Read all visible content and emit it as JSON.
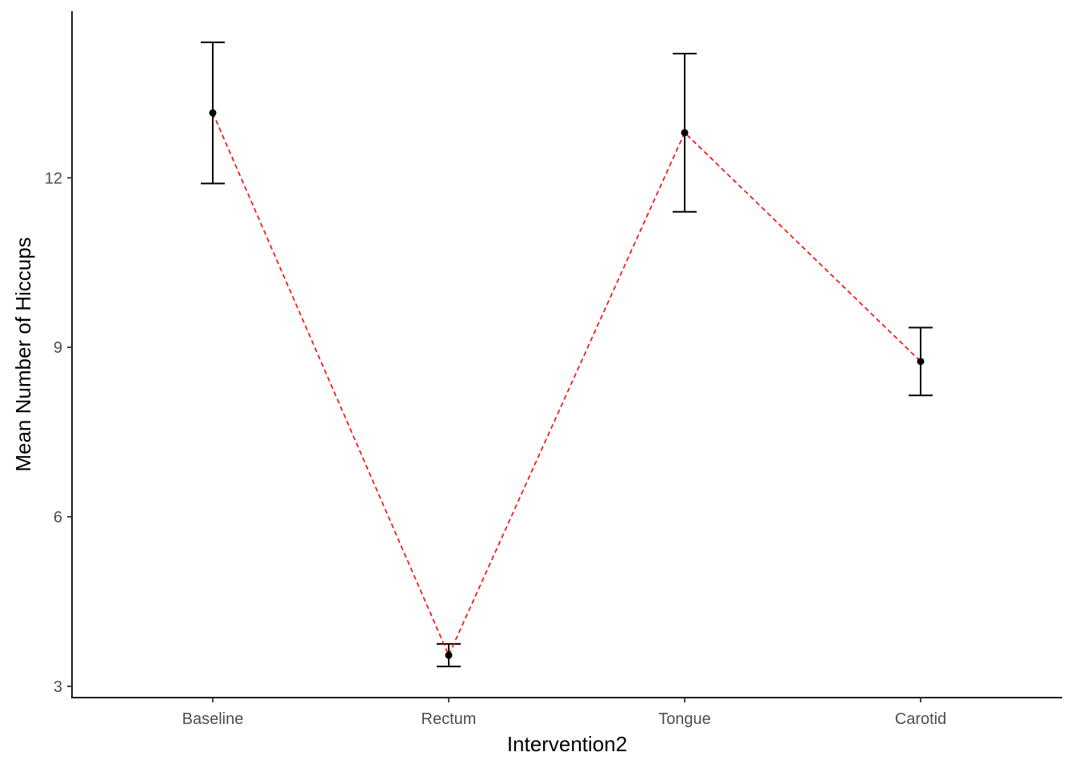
{
  "chart_data": {
    "type": "line",
    "title": "",
    "xlabel": "Intervention2",
    "ylabel": "Mean Number of Hiccups",
    "categories": [
      "Baseline",
      "Rectum",
      "Tongue",
      "Carotid"
    ],
    "series": [
      {
        "values": [
          13.15,
          3.55,
          12.8,
          8.75
        ],
        "error_low": [
          11.9,
          3.35,
          11.4,
          8.15
        ],
        "error_high": [
          14.4,
          3.75,
          14.2,
          9.35
        ]
      }
    ],
    "yticks": [
      3,
      6,
      9,
      12
    ],
    "ytick_labels": [
      "3",
      "6",
      "9",
      "12"
    ],
    "ylim": [
      2.8,
      14.95
    ],
    "grid": false,
    "legend": "none",
    "line_style": "dashed",
    "line_color": "#ff0000",
    "point_color": "#000000",
    "errorbar_color": "#000000"
  }
}
